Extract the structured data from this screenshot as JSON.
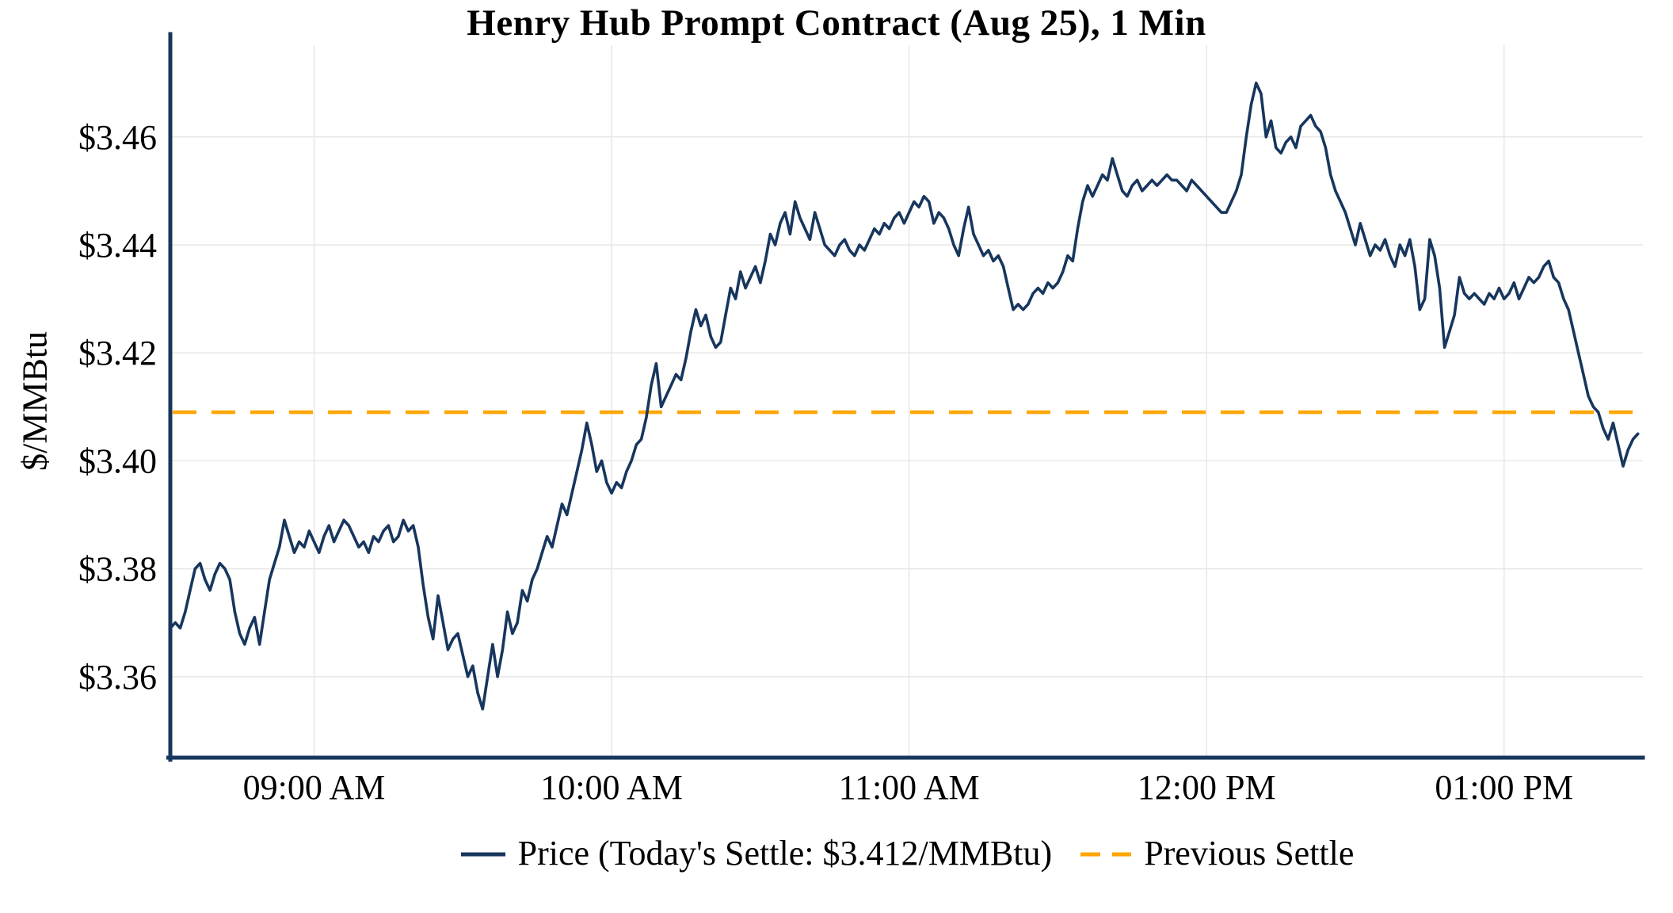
{
  "title": "Henry Hub Prompt Contract (Aug 25), 1 Min",
  "y_axis_label": "$/MMBtu",
  "legend": {
    "price": "Price (Today's Settle: $3.412/MMBtu)",
    "previous_settle": "Previous Settle"
  },
  "colors": {
    "price_line": "#17365d",
    "axis": "#17365d",
    "previous_settle": "#ffa500",
    "grid": "#e7e7e7",
    "text": "#000000"
  },
  "chart_data": {
    "type": "line",
    "title": "Henry Hub Prompt Contract (Aug 25), 1 Min",
    "xlabel": "",
    "ylabel": "$/MMBtu",
    "x_unit": "minutes since midnight",
    "xlim": [
      511,
      808
    ],
    "ylim": [
      3.345,
      3.477
    ],
    "grid": true,
    "legend_position": "lower center",
    "previous_settle": 3.409,
    "todays_settle": 3.412,
    "x_ticks": [
      {
        "t": 540,
        "label": "09:00 AM"
      },
      {
        "t": 600,
        "label": "10:00 AM"
      },
      {
        "t": 660,
        "label": "11:00 AM"
      },
      {
        "t": 720,
        "label": "12:00 PM"
      },
      {
        "t": 780,
        "label": "01:00 PM"
      }
    ],
    "y_ticks": [
      {
        "v": 3.36,
        "label": "$3.36"
      },
      {
        "v": 3.38,
        "label": "$3.38"
      },
      {
        "v": 3.4,
        "label": "$3.40"
      },
      {
        "v": 3.42,
        "label": "$3.42"
      },
      {
        "v": 3.44,
        "label": "$3.44"
      },
      {
        "v": 3.46,
        "label": "$3.46"
      }
    ],
    "series": [
      {
        "name": "Price",
        "style": "solid",
        "points": [
          [
            511,
            3.369
          ],
          [
            512,
            3.37
          ],
          [
            513,
            3.369
          ],
          [
            514,
            3.372
          ],
          [
            515,
            3.376
          ],
          [
            516,
            3.38
          ],
          [
            517,
            3.381
          ],
          [
            518,
            3.378
          ],
          [
            519,
            3.376
          ],
          [
            520,
            3.379
          ],
          [
            521,
            3.381
          ],
          [
            522,
            3.38
          ],
          [
            523,
            3.378
          ],
          [
            524,
            3.372
          ],
          [
            525,
            3.368
          ],
          [
            526,
            3.366
          ],
          [
            527,
            3.369
          ],
          [
            528,
            3.371
          ],
          [
            529,
            3.366
          ],
          [
            530,
            3.372
          ],
          [
            531,
            3.378
          ],
          [
            532,
            3.381
          ],
          [
            533,
            3.384
          ],
          [
            534,
            3.389
          ],
          [
            535,
            3.386
          ],
          [
            536,
            3.383
          ],
          [
            537,
            3.385
          ],
          [
            538,
            3.384
          ],
          [
            539,
            3.387
          ],
          [
            540,
            3.385
          ],
          [
            541,
            3.383
          ],
          [
            542,
            3.386
          ],
          [
            543,
            3.388
          ],
          [
            544,
            3.385
          ],
          [
            545,
            3.387
          ],
          [
            546,
            3.389
          ],
          [
            547,
            3.388
          ],
          [
            548,
            3.386
          ],
          [
            549,
            3.384
          ],
          [
            550,
            3.385
          ],
          [
            551,
            3.383
          ],
          [
            552,
            3.386
          ],
          [
            553,
            3.385
          ],
          [
            554,
            3.387
          ],
          [
            555,
            3.388
          ],
          [
            556,
            3.385
          ],
          [
            557,
            3.386
          ],
          [
            558,
            3.389
          ],
          [
            559,
            3.387
          ],
          [
            560,
            3.388
          ],
          [
            561,
            3.384
          ],
          [
            562,
            3.377
          ],
          [
            563,
            3.371
          ],
          [
            564,
            3.367
          ],
          [
            565,
            3.375
          ],
          [
            566,
            3.37
          ],
          [
            567,
            3.365
          ],
          [
            568,
            3.367
          ],
          [
            569,
            3.368
          ],
          [
            570,
            3.364
          ],
          [
            571,
            3.36
          ],
          [
            572,
            3.362
          ],
          [
            573,
            3.357
          ],
          [
            574,
            3.354
          ],
          [
            575,
            3.36
          ],
          [
            576,
            3.366
          ],
          [
            577,
            3.36
          ],
          [
            578,
            3.365
          ],
          [
            579,
            3.372
          ],
          [
            580,
            3.368
          ],
          [
            581,
            3.37
          ],
          [
            582,
            3.376
          ],
          [
            583,
            3.374
          ],
          [
            584,
            3.378
          ],
          [
            585,
            3.38
          ],
          [
            586,
            3.383
          ],
          [
            587,
            3.386
          ],
          [
            588,
            3.384
          ],
          [
            589,
            3.388
          ],
          [
            590,
            3.392
          ],
          [
            591,
            3.39
          ],
          [
            592,
            3.394
          ],
          [
            593,
            3.398
          ],
          [
            594,
            3.402
          ],
          [
            595,
            3.407
          ],
          [
            596,
            3.403
          ],
          [
            597,
            3.398
          ],
          [
            598,
            3.4
          ],
          [
            599,
            3.396
          ],
          [
            600,
            3.394
          ],
          [
            601,
            3.396
          ],
          [
            602,
            3.395
          ],
          [
            603,
            3.398
          ],
          [
            604,
            3.4
          ],
          [
            605,
            3.403
          ],
          [
            606,
            3.404
          ],
          [
            607,
            3.408
          ],
          [
            608,
            3.414
          ],
          [
            609,
            3.418
          ],
          [
            610,
            3.41
          ],
          [
            611,
            3.412
          ],
          [
            612,
            3.414
          ],
          [
            613,
            3.416
          ],
          [
            614,
            3.415
          ],
          [
            615,
            3.419
          ],
          [
            616,
            3.424
          ],
          [
            617,
            3.428
          ],
          [
            618,
            3.425
          ],
          [
            619,
            3.427
          ],
          [
            620,
            3.423
          ],
          [
            621,
            3.421
          ],
          [
            622,
            3.422
          ],
          [
            623,
            3.427
          ],
          [
            624,
            3.432
          ],
          [
            625,
            3.43
          ],
          [
            626,
            3.435
          ],
          [
            627,
            3.432
          ],
          [
            628,
            3.434
          ],
          [
            629,
            3.436
          ],
          [
            630,
            3.433
          ],
          [
            631,
            3.437
          ],
          [
            632,
            3.442
          ],
          [
            633,
            3.44
          ],
          [
            634,
            3.444
          ],
          [
            635,
            3.446
          ],
          [
            636,
            3.442
          ],
          [
            637,
            3.448
          ],
          [
            638,
            3.445
          ],
          [
            639,
            3.443
          ],
          [
            640,
            3.441
          ],
          [
            641,
            3.446
          ],
          [
            642,
            3.443
          ],
          [
            643,
            3.44
          ],
          [
            644,
            3.439
          ],
          [
            645,
            3.438
          ],
          [
            646,
            3.44
          ],
          [
            647,
            3.441
          ],
          [
            648,
            3.439
          ],
          [
            649,
            3.438
          ],
          [
            650,
            3.44
          ],
          [
            651,
            3.439
          ],
          [
            652,
            3.441
          ],
          [
            653,
            3.443
          ],
          [
            654,
            3.442
          ],
          [
            655,
            3.444
          ],
          [
            656,
            3.443
          ],
          [
            657,
            3.445
          ],
          [
            658,
            3.446
          ],
          [
            659,
            3.444
          ],
          [
            660,
            3.446
          ],
          [
            661,
            3.448
          ],
          [
            662,
            3.447
          ],
          [
            663,
            3.449
          ],
          [
            664,
            3.448
          ],
          [
            665,
            3.444
          ],
          [
            666,
            3.446
          ],
          [
            667,
            3.445
          ],
          [
            668,
            3.443
          ],
          [
            669,
            3.44
          ],
          [
            670,
            3.438
          ],
          [
            671,
            3.443
          ],
          [
            672,
            3.447
          ],
          [
            673,
            3.442
          ],
          [
            674,
            3.44
          ],
          [
            675,
            3.438
          ],
          [
            676,
            3.439
          ],
          [
            677,
            3.437
          ],
          [
            678,
            3.438
          ],
          [
            679,
            3.436
          ],
          [
            680,
            3.432
          ],
          [
            681,
            3.428
          ],
          [
            682,
            3.429
          ],
          [
            683,
            3.428
          ],
          [
            684,
            3.429
          ],
          [
            685,
            3.431
          ],
          [
            686,
            3.432
          ],
          [
            687,
            3.431
          ],
          [
            688,
            3.433
          ],
          [
            689,
            3.432
          ],
          [
            690,
            3.433
          ],
          [
            691,
            3.435
          ],
          [
            692,
            3.438
          ],
          [
            693,
            3.437
          ],
          [
            694,
            3.443
          ],
          [
            695,
            3.448
          ],
          [
            696,
            3.451
          ],
          [
            697,
            3.449
          ],
          [
            698,
            3.451
          ],
          [
            699,
            3.453
          ],
          [
            700,
            3.452
          ],
          [
            701,
            3.456
          ],
          [
            702,
            3.453
          ],
          [
            703,
            3.45
          ],
          [
            704,
            3.449
          ],
          [
            705,
            3.451
          ],
          [
            706,
            3.452
          ],
          [
            707,
            3.45
          ],
          [
            708,
            3.451
          ],
          [
            709,
            3.452
          ],
          [
            710,
            3.451
          ],
          [
            711,
            3.452
          ],
          [
            712,
            3.453
          ],
          [
            713,
            3.452
          ],
          [
            714,
            3.452
          ],
          [
            715,
            3.451
          ],
          [
            716,
            3.45
          ],
          [
            717,
            3.452
          ],
          [
            718,
            3.451
          ],
          [
            719,
            3.45
          ],
          [
            720,
            3.449
          ],
          [
            721,
            3.448
          ],
          [
            722,
            3.447
          ],
          [
            723,
            3.446
          ],
          [
            724,
            3.446
          ],
          [
            725,
            3.448
          ],
          [
            726,
            3.45
          ],
          [
            727,
            3.453
          ],
          [
            728,
            3.46
          ],
          [
            729,
            3.466
          ],
          [
            730,
            3.47
          ],
          [
            731,
            3.468
          ],
          [
            732,
            3.46
          ],
          [
            733,
            3.463
          ],
          [
            734,
            3.458
          ],
          [
            735,
            3.457
          ],
          [
            736,
            3.459
          ],
          [
            737,
            3.46
          ],
          [
            738,
            3.458
          ],
          [
            739,
            3.462
          ],
          [
            740,
            3.463
          ],
          [
            741,
            3.464
          ],
          [
            742,
            3.462
          ],
          [
            743,
            3.461
          ],
          [
            744,
            3.458
          ],
          [
            745,
            3.453
          ],
          [
            746,
            3.45
          ],
          [
            747,
            3.448
          ],
          [
            748,
            3.446
          ],
          [
            749,
            3.443
          ],
          [
            750,
            3.44
          ],
          [
            751,
            3.444
          ],
          [
            752,
            3.441
          ],
          [
            753,
            3.438
          ],
          [
            754,
            3.44
          ],
          [
            755,
            3.439
          ],
          [
            756,
            3.441
          ],
          [
            757,
            3.438
          ],
          [
            758,
            3.436
          ],
          [
            759,
            3.44
          ],
          [
            760,
            3.438
          ],
          [
            761,
            3.441
          ],
          [
            762,
            3.436
          ],
          [
            763,
            3.428
          ],
          [
            764,
            3.43
          ],
          [
            765,
            3.441
          ],
          [
            766,
            3.438
          ],
          [
            767,
            3.432
          ],
          [
            768,
            3.421
          ],
          [
            769,
            3.424
          ],
          [
            770,
            3.427
          ],
          [
            771,
            3.434
          ],
          [
            772,
            3.431
          ],
          [
            773,
            3.43
          ],
          [
            774,
            3.431
          ],
          [
            775,
            3.43
          ],
          [
            776,
            3.429
          ],
          [
            777,
            3.431
          ],
          [
            778,
            3.43
          ],
          [
            779,
            3.432
          ],
          [
            780,
            3.43
          ],
          [
            781,
            3.431
          ],
          [
            782,
            3.433
          ],
          [
            783,
            3.43
          ],
          [
            784,
            3.432
          ],
          [
            785,
            3.434
          ],
          [
            786,
            3.433
          ],
          [
            787,
            3.434
          ],
          [
            788,
            3.436
          ],
          [
            789,
            3.437
          ],
          [
            790,
            3.434
          ],
          [
            791,
            3.433
          ],
          [
            792,
            3.43
          ],
          [
            793,
            3.428
          ],
          [
            794,
            3.424
          ],
          [
            795,
            3.42
          ],
          [
            796,
            3.416
          ],
          [
            797,
            3.412
          ],
          [
            798,
            3.41
          ],
          [
            799,
            3.409
          ],
          [
            800,
            3.406
          ],
          [
            801,
            3.404
          ],
          [
            802,
            3.407
          ],
          [
            803,
            3.403
          ],
          [
            804,
            3.399
          ],
          [
            805,
            3.402
          ],
          [
            806,
            3.404
          ],
          [
            807,
            3.405
          ]
        ]
      },
      {
        "name": "Previous Settle",
        "style": "dashed",
        "value": 3.409
      }
    ]
  }
}
